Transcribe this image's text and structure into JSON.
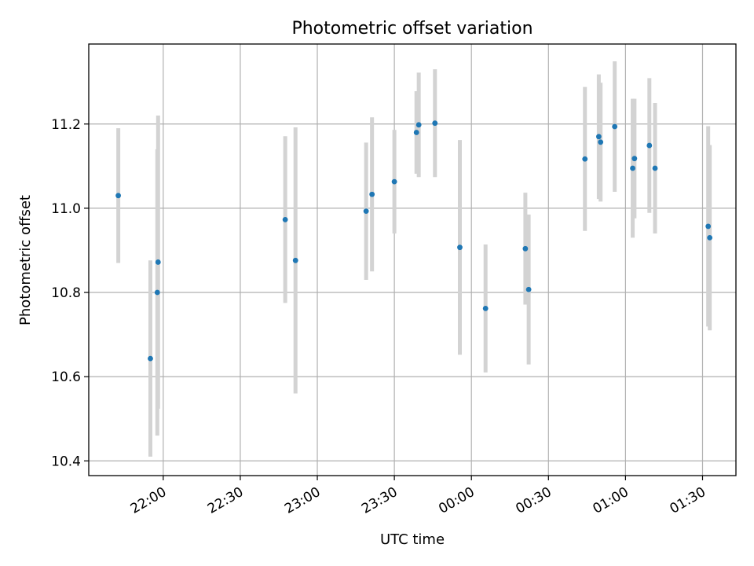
{
  "chart_data": {
    "type": "scatter",
    "title": "Photometric offset variation",
    "xlabel": "UTC time",
    "ylabel": "Photometric offset",
    "x_ticks": [
      "22:00",
      "22:30",
      "23:00",
      "23:30",
      "00:00",
      "00:30",
      "01:00",
      "01:30"
    ],
    "x_tick_minutes": [
      0,
      30,
      60,
      90,
      120,
      150,
      180,
      210
    ],
    "y_ticks": [
      "10.4",
      "10.6",
      "10.8",
      "11.0",
      "11.2"
    ],
    "y_tick_values": [
      10.4,
      10.6,
      10.8,
      11.0,
      11.2
    ],
    "xlim_minutes": [
      -29,
      223
    ],
    "ylim": [
      10.365,
      11.39
    ],
    "grid": true,
    "colors": {
      "points": "#1f77b4",
      "errorbars": "#d3d3d3"
    },
    "points": [
      {
        "minutes_after_22_00": -17.5,
        "y": 11.03,
        "err": 0.16
      },
      {
        "minutes_after_22_00": -5.0,
        "y": 10.643,
        "err": 0.233
      },
      {
        "minutes_after_22_00": -2.3,
        "y": 10.8,
        "err": 0.34
      },
      {
        "minutes_after_22_00": -2.0,
        "y": 10.872,
        "err": 0.348
      },
      {
        "minutes_after_22_00": 47.5,
        "y": 10.973,
        "err": 0.198
      },
      {
        "minutes_after_22_00": 51.5,
        "y": 10.876,
        "err": 0.316
      },
      {
        "minutes_after_22_00": 79.0,
        "y": 10.993,
        "err": 0.163
      },
      {
        "minutes_after_22_00": 81.3,
        "y": 11.033,
        "err": 0.183
      },
      {
        "minutes_after_22_00": 90.0,
        "y": 11.063,
        "err": 0.123
      },
      {
        "minutes_after_22_00": 98.6,
        "y": 11.18,
        "err": 0.098
      },
      {
        "minutes_after_22_00": 99.5,
        "y": 11.198,
        "err": 0.124
      },
      {
        "minutes_after_22_00": 105.8,
        "y": 11.202,
        "err": 0.128
      },
      {
        "minutes_after_22_00": 115.5,
        "y": 10.907,
        "err": 0.255
      },
      {
        "minutes_after_22_00": 125.5,
        "y": 10.762,
        "err": 0.152
      },
      {
        "minutes_after_22_00": 141.0,
        "y": 10.904,
        "err": 0.133
      },
      {
        "minutes_after_22_00": 142.3,
        "y": 10.807,
        "err": 0.178
      },
      {
        "minutes_after_22_00": 164.2,
        "y": 11.117,
        "err": 0.171
      },
      {
        "minutes_after_22_00": 169.6,
        "y": 11.17,
        "err": 0.148
      },
      {
        "minutes_after_22_00": 170.3,
        "y": 11.157,
        "err": 0.141
      },
      {
        "minutes_after_22_00": 175.8,
        "y": 11.194,
        "err": 0.155
      },
      {
        "minutes_after_22_00": 182.8,
        "y": 11.095,
        "err": 0.165
      },
      {
        "minutes_after_22_00": 183.5,
        "y": 11.118,
        "err": 0.142
      },
      {
        "minutes_after_22_00": 189.3,
        "y": 11.149,
        "err": 0.16
      },
      {
        "minutes_after_22_00": 191.5,
        "y": 11.095,
        "err": 0.155
      },
      {
        "minutes_after_22_00": 212.2,
        "y": 10.957,
        "err": 0.238
      },
      {
        "minutes_after_22_00": 212.8,
        "y": 10.93,
        "err": 0.22
      }
    ]
  }
}
